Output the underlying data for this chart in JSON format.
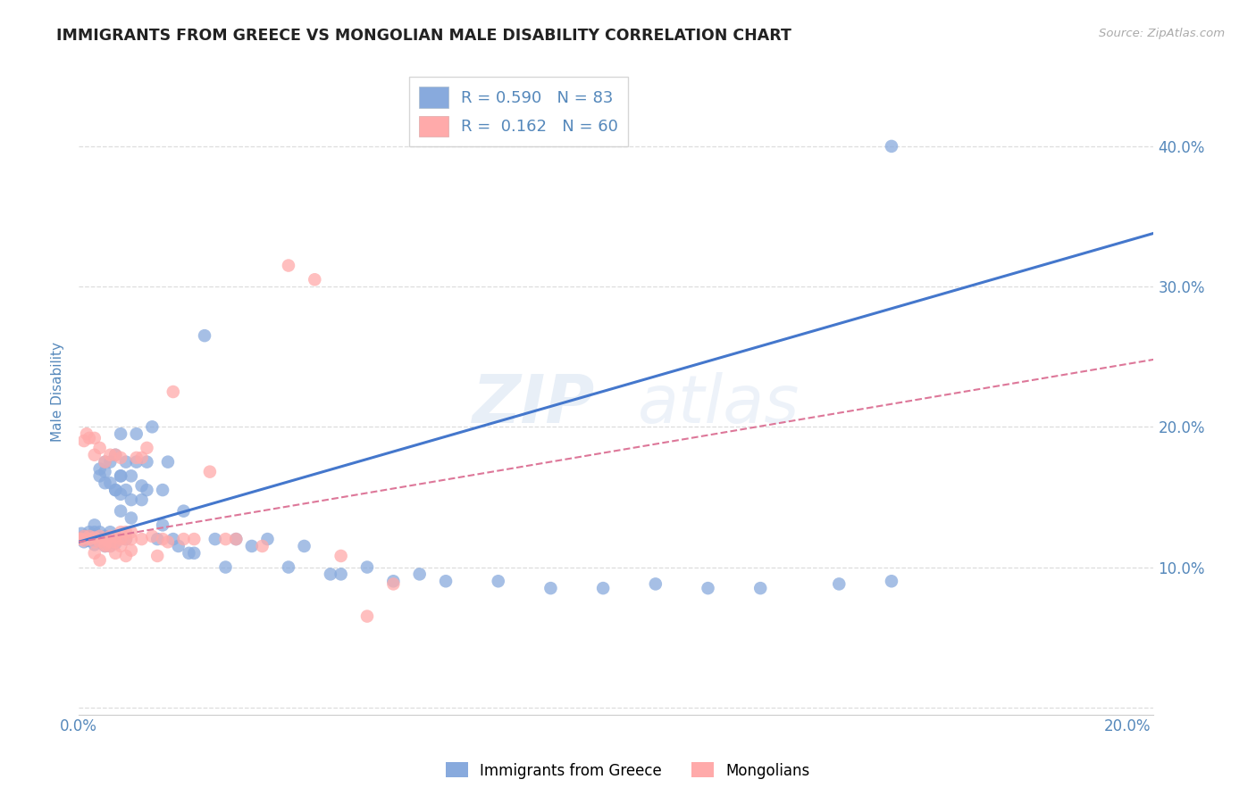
{
  "title": "IMMIGRANTS FROM GREECE VS MONGOLIAN MALE DISABILITY CORRELATION CHART",
  "source": "Source: ZipAtlas.com",
  "ylabel_label": "Male Disability",
  "xlim": [
    0.0,
    0.205
  ],
  "ylim": [
    -0.005,
    0.455
  ],
  "yticks": [
    0.0,
    0.1,
    0.2,
    0.3,
    0.4
  ],
  "xticks": [
    0.0,
    0.05,
    0.1,
    0.15,
    0.2
  ],
  "xtick_labels": [
    "0.0%",
    "",
    "",
    "",
    "20.0%"
  ],
  "ytick_labels": [
    "",
    "10.0%",
    "20.0%",
    "30.0%",
    "40.0%"
  ],
  "blue_color": "#88AADD",
  "pink_color": "#FFAAAA",
  "blue_line_color": "#4477CC",
  "pink_line_color": "#DD7799",
  "legend_R_blue": "0.590",
  "legend_N_blue": "83",
  "legend_R_pink": "0.162",
  "legend_N_pink": "60",
  "blue_scatter_x": [
    0.0005,
    0.001,
    0.001,
    0.0015,
    0.002,
    0.002,
    0.002,
    0.0025,
    0.003,
    0.003,
    0.003,
    0.003,
    0.004,
    0.004,
    0.004,
    0.004,
    0.004,
    0.005,
    0.005,
    0.005,
    0.005,
    0.005,
    0.005,
    0.006,
    0.006,
    0.006,
    0.006,
    0.007,
    0.007,
    0.007,
    0.007,
    0.008,
    0.008,
    0.008,
    0.008,
    0.009,
    0.009,
    0.009,
    0.01,
    0.01,
    0.01,
    0.011,
    0.011,
    0.012,
    0.012,
    0.013,
    0.013,
    0.014,
    0.015,
    0.016,
    0.016,
    0.017,
    0.018,
    0.019,
    0.02,
    0.021,
    0.022,
    0.024,
    0.026,
    0.028,
    0.03,
    0.033,
    0.036,
    0.04,
    0.043,
    0.048,
    0.05,
    0.055,
    0.06,
    0.065,
    0.07,
    0.08,
    0.09,
    0.1,
    0.11,
    0.12,
    0.13,
    0.145,
    0.155,
    0.006,
    0.007,
    0.008,
    0.155
  ],
  "blue_scatter_y": [
    0.124,
    0.118,
    0.122,
    0.119,
    0.119,
    0.122,
    0.125,
    0.12,
    0.116,
    0.121,
    0.125,
    0.13,
    0.118,
    0.121,
    0.125,
    0.165,
    0.17,
    0.115,
    0.118,
    0.122,
    0.16,
    0.168,
    0.175,
    0.115,
    0.12,
    0.16,
    0.175,
    0.117,
    0.122,
    0.155,
    0.18,
    0.14,
    0.152,
    0.165,
    0.195,
    0.12,
    0.155,
    0.175,
    0.135,
    0.148,
    0.165,
    0.175,
    0.195,
    0.148,
    0.158,
    0.155,
    0.175,
    0.2,
    0.12,
    0.13,
    0.155,
    0.175,
    0.12,
    0.115,
    0.14,
    0.11,
    0.11,
    0.265,
    0.12,
    0.1,
    0.12,
    0.115,
    0.12,
    0.1,
    0.115,
    0.095,
    0.095,
    0.1,
    0.09,
    0.095,
    0.09,
    0.09,
    0.085,
    0.085,
    0.088,
    0.085,
    0.085,
    0.088,
    0.09,
    0.125,
    0.155,
    0.165,
    0.4
  ],
  "pink_scatter_x": [
    0.0003,
    0.0005,
    0.001,
    0.001,
    0.001,
    0.0015,
    0.002,
    0.002,
    0.002,
    0.003,
    0.003,
    0.003,
    0.003,
    0.004,
    0.004,
    0.004,
    0.005,
    0.005,
    0.005,
    0.006,
    0.006,
    0.006,
    0.007,
    0.007,
    0.007,
    0.008,
    0.008,
    0.008,
    0.009,
    0.009,
    0.01,
    0.01,
    0.011,
    0.012,
    0.012,
    0.013,
    0.014,
    0.015,
    0.016,
    0.017,
    0.018,
    0.02,
    0.022,
    0.025,
    0.028,
    0.03,
    0.035,
    0.04,
    0.045,
    0.05,
    0.055,
    0.06,
    0.003,
    0.004,
    0.005,
    0.006,
    0.007,
    0.008,
    0.009,
    0.01
  ],
  "pink_scatter_y": [
    0.12,
    0.12,
    0.119,
    0.122,
    0.19,
    0.195,
    0.12,
    0.122,
    0.192,
    0.118,
    0.121,
    0.18,
    0.192,
    0.118,
    0.122,
    0.185,
    0.116,
    0.12,
    0.175,
    0.118,
    0.122,
    0.18,
    0.118,
    0.122,
    0.18,
    0.12,
    0.125,
    0.178,
    0.12,
    0.125,
    0.12,
    0.125,
    0.178,
    0.12,
    0.178,
    0.185,
    0.122,
    0.108,
    0.12,
    0.118,
    0.225,
    0.12,
    0.12,
    0.168,
    0.12,
    0.12,
    0.115,
    0.315,
    0.305,
    0.108,
    0.065,
    0.088,
    0.11,
    0.105,
    0.115,
    0.115,
    0.11,
    0.115,
    0.108,
    0.112
  ],
  "blue_trend_x": [
    0.0,
    0.205
  ],
  "blue_trend_y": [
    0.118,
    0.338
  ],
  "pink_trend_x": [
    0.0,
    0.205
  ],
  "pink_trend_y": [
    0.118,
    0.248
  ],
  "watermark_line1": "ZIP",
  "watermark_line2": "atlas",
  "background_color": "#FFFFFF",
  "grid_color": "#DDDDDD",
  "title_color": "#222222",
  "axis_color": "#5588BB",
  "tick_fontsize": 12,
  "ylabel_fontsize": 11
}
